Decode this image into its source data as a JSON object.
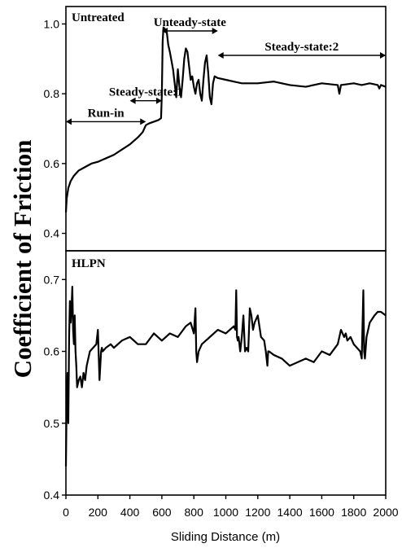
{
  "chart_data": {
    "type": "line",
    "xlabel": "Sliding Distance (m)",
    "ylabel": "Coefficient of Friction",
    "xlim": [
      0,
      2000
    ],
    "x_ticks": [
      "0",
      "200",
      "400",
      "600",
      "800",
      "1000",
      "1200",
      "1400",
      "1600",
      "1800",
      "2000"
    ],
    "grid": false,
    "panels": [
      {
        "label": "Untreated",
        "ylim": [
          0.35,
          1.05
        ],
        "y_ticks": [
          "0.4",
          "0.6",
          "0.8",
          "1.0"
        ],
        "line_color": "#000000",
        "series": [
          {
            "x": [
              0,
              5,
              15,
              30,
              50,
              80,
              120,
              160,
              200,
              250,
              300,
              350,
              400,
              450,
              480,
              500,
              520,
              550,
              580,
              595,
              600,
              605,
              610,
              620,
              630,
              640,
              650,
              660,
              670,
              680,
              690,
              700,
              710,
              720,
              730,
              740,
              750,
              760,
              770,
              780,
              790,
              800,
              810,
              820,
              830,
              840,
              850,
              860,
              870,
              880,
              890,
              900,
              910,
              920,
              930,
              950,
              1000,
              1050,
              1100,
              1200,
              1300,
              1400,
              1500,
              1600,
              1700,
              1710,
              1720,
              1800,
              1850,
              1900,
              1950,
              1960,
              1970,
              2000
            ],
            "values": [
              0.46,
              0.5,
              0.53,
              0.55,
              0.565,
              0.58,
              0.59,
              0.6,
              0.605,
              0.615,
              0.625,
              0.64,
              0.655,
              0.675,
              0.69,
              0.71,
              0.715,
              0.72,
              0.725,
              0.73,
              0.8,
              0.95,
              0.99,
              0.985,
              0.98,
              0.94,
              0.92,
              0.895,
              0.87,
              0.83,
              0.79,
              0.87,
              0.82,
              0.79,
              0.84,
              0.9,
              0.93,
              0.92,
              0.88,
              0.84,
              0.85,
              0.82,
              0.8,
              0.83,
              0.84,
              0.8,
              0.78,
              0.84,
              0.89,
              0.91,
              0.86,
              0.79,
              0.77,
              0.83,
              0.85,
              0.845,
              0.84,
              0.835,
              0.83,
              0.83,
              0.835,
              0.825,
              0.82,
              0.83,
              0.825,
              0.8,
              0.825,
              0.83,
              0.825,
              0.83,
              0.825,
              0.815,
              0.825,
              0.82
            ]
          }
        ],
        "annotations": [
          {
            "text": "Run-in",
            "x_from": 0,
            "x_to": 500,
            "y": 0.72
          },
          {
            "text": "Steady-state:1",
            "x_from": 400,
            "x_to": 600,
            "y": 0.78
          },
          {
            "text": "Unteady-state",
            "x_from": 600,
            "x_to": 950,
            "y": 0.98
          },
          {
            "text": "Steady-state:2",
            "x_from": 950,
            "x_to": 2000,
            "y": 0.91
          }
        ]
      },
      {
        "label": "HLPN",
        "ylim": [
          0.4,
          0.74
        ],
        "y_ticks": [
          "0.4",
          "0.5",
          "0.6",
          "0.7"
        ],
        "line_color": "#000000",
        "series": [
          {
            "x": [
              0,
              5,
              10,
              15,
              20,
              25,
              30,
              35,
              40,
              45,
              50,
              55,
              60,
              65,
              70,
              80,
              90,
              100,
              110,
              120,
              130,
              150,
              170,
              190,
              200,
              210,
              220,
              225,
              230,
              250,
              280,
              300,
              350,
              400,
              450,
              500,
              550,
              600,
              650,
              700,
              750,
              780,
              800,
              810,
              815,
              820,
              830,
              850,
              900,
              950,
              1000,
              1050,
              1060,
              1065,
              1070,
              1075,
              1080,
              1090,
              1100,
              1110,
              1120,
              1130,
              1140,
              1150,
              1160,
              1170,
              1180,
              1200,
              1220,
              1240,
              1250,
              1260,
              1265,
              1270,
              1300,
              1350,
              1400,
              1450,
              1500,
              1550,
              1600,
              1650,
              1700,
              1720,
              1740,
              1750,
              1760,
              1780,
              1800,
              1840,
              1850,
              1860,
              1865,
              1870,
              1880,
              1900,
              1930,
              1950,
              1970,
              2000
            ],
            "values": [
              0.44,
              0.54,
              0.57,
              0.5,
              0.62,
              0.67,
              0.64,
              0.66,
              0.69,
              0.63,
              0.61,
              0.65,
              0.6,
              0.58,
              0.55,
              0.56,
              0.565,
              0.55,
              0.57,
              0.56,
              0.58,
              0.6,
              0.605,
              0.61,
              0.63,
              0.56,
              0.6,
              0.605,
              0.6,
              0.605,
              0.61,
              0.605,
              0.615,
              0.62,
              0.61,
              0.61,
              0.625,
              0.615,
              0.625,
              0.62,
              0.635,
              0.64,
              0.625,
              0.66,
              0.6,
              0.585,
              0.6,
              0.61,
              0.62,
              0.63,
              0.625,
              0.635,
              0.63,
              0.685,
              0.62,
              0.615,
              0.62,
              0.6,
              0.62,
              0.65,
              0.6,
              0.605,
              0.6,
              0.66,
              0.65,
              0.63,
              0.64,
              0.65,
              0.62,
              0.615,
              0.6,
              0.58,
              0.6,
              0.6,
              0.595,
              0.59,
              0.58,
              0.585,
              0.59,
              0.585,
              0.6,
              0.595,
              0.61,
              0.63,
              0.62,
              0.625,
              0.615,
              0.62,
              0.61,
              0.6,
              0.59,
              0.685,
              0.6,
              0.59,
              0.62,
              0.64,
              0.65,
              0.655,
              0.655,
              0.65
            ]
          }
        ],
        "annotations": []
      }
    ]
  }
}
